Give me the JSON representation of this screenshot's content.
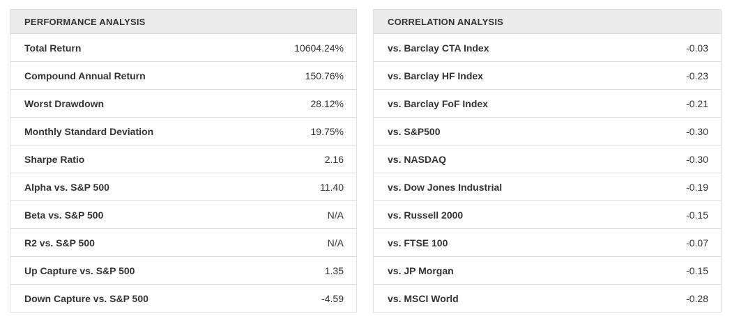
{
  "performance": {
    "title": "PERFORMANCE ANALYSIS",
    "rows": [
      {
        "label": "Total Return",
        "value": "10604.24%"
      },
      {
        "label": "Compound Annual Return",
        "value": "150.76%"
      },
      {
        "label": "Worst Drawdown",
        "value": "28.12%"
      },
      {
        "label": "Monthly Standard Deviation",
        "value": "19.75%"
      },
      {
        "label": "Sharpe Ratio",
        "value": "2.16"
      },
      {
        "label": "Alpha vs. S&P 500",
        "value": "11.40"
      },
      {
        "label": "Beta vs. S&P 500",
        "value": "N/A"
      },
      {
        "label": "R2 vs. S&P 500",
        "value": "N/A"
      },
      {
        "label": "Up Capture vs. S&P 500",
        "value": "1.35"
      },
      {
        "label": "Down Capture vs. S&P 500",
        "value": "-4.59"
      }
    ]
  },
  "correlation": {
    "title": "CORRELATION ANALYSIS",
    "rows": [
      {
        "label": "vs. Barclay CTA Index",
        "value": "-0.03"
      },
      {
        "label": "vs. Barclay HF Index",
        "value": "-0.23"
      },
      {
        "label": "vs. Barclay FoF Index",
        "value": "-0.21"
      },
      {
        "label": "vs. S&P500",
        "value": "-0.30"
      },
      {
        "label": "vs. NASDAQ",
        "value": "-0.30"
      },
      {
        "label": "vs. Dow Jones Industrial",
        "value": "-0.19"
      },
      {
        "label": "vs. Russell 2000",
        "value": "-0.15"
      },
      {
        "label": "vs. FTSE 100",
        "value": "-0.07"
      },
      {
        "label": "vs. JP Morgan",
        "value": "-0.15"
      },
      {
        "label": "vs. MSCI World",
        "value": "-0.28"
      }
    ]
  },
  "colors": {
    "header_background": "#ececec",
    "border": "#dddddd",
    "text": "#333333"
  },
  "chart_data": [
    {
      "type": "table",
      "title": "PERFORMANCE ANALYSIS",
      "categories": [
        "Total Return",
        "Compound Annual Return",
        "Worst Drawdown",
        "Monthly Standard Deviation",
        "Sharpe Ratio",
        "Alpha vs. S&P 500",
        "Beta vs. S&P 500",
        "R2 vs. S&P 500",
        "Up Capture vs. S&P 500",
        "Down Capture vs. S&P 500"
      ],
      "values": [
        "10604.24%",
        "150.76%",
        "28.12%",
        "19.75%",
        "2.16",
        "11.40",
        "N/A",
        "N/A",
        "1.35",
        "-4.59"
      ]
    },
    {
      "type": "table",
      "title": "CORRELATION ANALYSIS",
      "categories": [
        "vs. Barclay CTA Index",
        "vs. Barclay HF Index",
        "vs. Barclay FoF Index",
        "vs. S&P500",
        "vs. NASDAQ",
        "vs. Dow Jones Industrial",
        "vs. Russell 2000",
        "vs. FTSE 100",
        "vs. JP Morgan",
        "vs. MSCI World"
      ],
      "values": [
        -0.03,
        -0.23,
        -0.21,
        -0.3,
        -0.3,
        -0.19,
        -0.15,
        -0.07,
        -0.15,
        -0.28
      ]
    }
  ]
}
